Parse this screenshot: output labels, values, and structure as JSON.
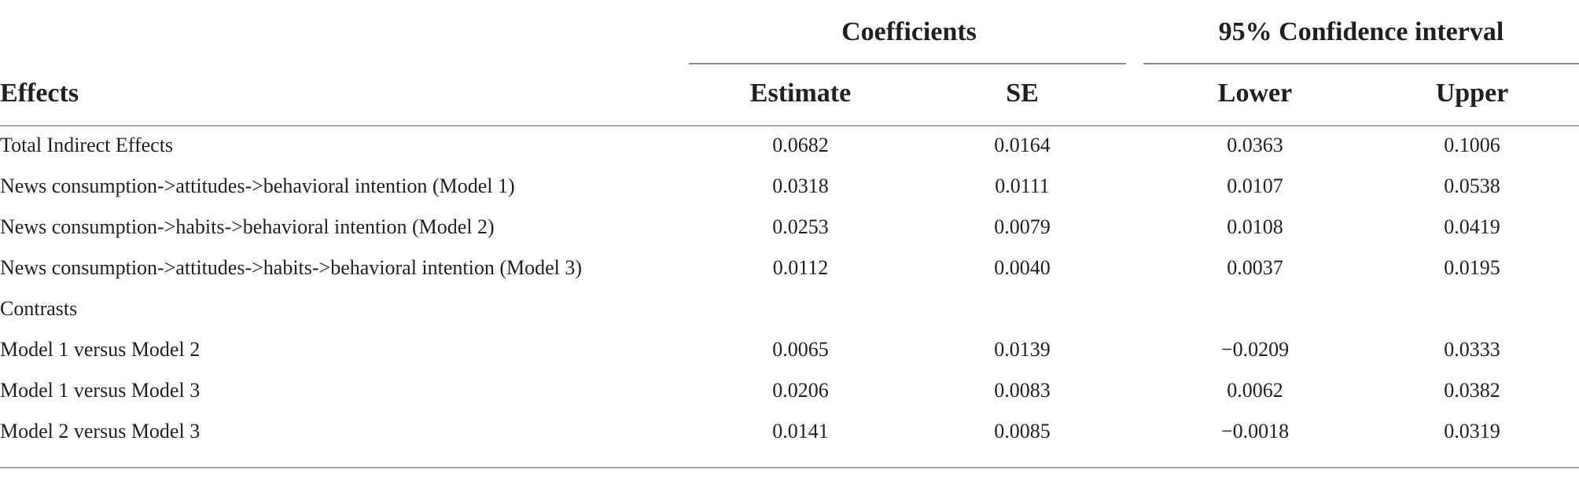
{
  "header": {
    "group_coefficients": "Coefficients",
    "group_ci": "95% Confidence interval",
    "col_effects": "Effects",
    "col_estimate": "Estimate",
    "col_se": "SE",
    "col_lower": "Lower",
    "col_upper": "Upper"
  },
  "rows": [
    {
      "label": "Total Indirect Effects",
      "estimate": "0.0682",
      "se": "0.0164",
      "lower": "0.0363",
      "upper": "0.1006"
    },
    {
      "label": "News consumption->attitudes->behavioral intention (Model 1)",
      "estimate": "0.0318",
      "se": "0.0111",
      "lower": "0.0107",
      "upper": "0.0538"
    },
    {
      "label": "News consumption->habits->behavioral intention (Model 2)",
      "estimate": "0.0253",
      "se": "0.0079",
      "lower": "0.0108",
      "upper": "0.0419"
    },
    {
      "label": "News consumption->attitudes->habits->behavioral intention (Model 3)",
      "estimate": "0.0112",
      "se": "0.0040",
      "lower": "0.0037",
      "upper": "0.0195"
    },
    {
      "label": "Contrasts",
      "estimate": "",
      "se": "",
      "lower": "",
      "upper": ""
    },
    {
      "label": "Model 1 versus Model 2",
      "estimate": "0.0065",
      "se": "0.0139",
      "lower": "−0.0209",
      "upper": "0.0333"
    },
    {
      "label": "Model 1 versus Model 3",
      "estimate": "0.0206",
      "se": "0.0083",
      "lower": "0.0062",
      "upper": "0.0382"
    },
    {
      "label": "Model 2 versus Model 3",
      "estimate": "0.0141",
      "se": "0.0085",
      "lower": "−0.0018",
      "upper": "0.0319"
    }
  ]
}
